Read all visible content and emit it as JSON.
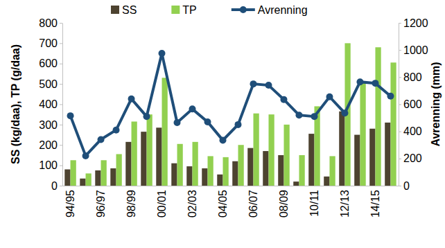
{
  "chart_data": {
    "type": "bar",
    "ylabel": "SS (kg/daa), TP (g/daa)",
    "y2label": "Avrenning (mm)",
    "categories": [
      "94/95",
      null,
      "96/97",
      null,
      "98/99",
      null,
      "00/01",
      null,
      "02/03",
      null,
      "04/05",
      null,
      "06/07",
      null,
      "08/09",
      null,
      "10/11",
      null,
      "12/13",
      null,
      "14/15",
      null
    ],
    "series": [
      {
        "name": "SS",
        "type": "bar",
        "color": "#4d4330",
        "values": [
          80,
          35,
          75,
          85,
          215,
          265,
          285,
          110,
          95,
          85,
          55,
          120,
          185,
          170,
          150,
          20,
          255,
          45,
          365,
          250,
          280,
          310
        ]
      },
      {
        "name": "TP",
        "type": "bar",
        "color": "#92d050",
        "values": [
          125,
          60,
          125,
          155,
          315,
          350,
          530,
          205,
          215,
          145,
          140,
          200,
          355,
          350,
          300,
          150,
          390,
          145,
          700,
          510,
          680,
          605
        ]
      },
      {
        "name": "Avrenning",
        "type": "line",
        "axis": "y2",
        "color": "#1f4e79",
        "marker": "circle",
        "values": [
          515,
          220,
          340,
          410,
          640,
          510,
          975,
          465,
          565,
          470,
          335,
          450,
          750,
          740,
          635,
          520,
          510,
          655,
          535,
          765,
          755,
          660
        ]
      }
    ],
    "ylim": [
      0,
      800
    ],
    "yticks": [
      0,
      100,
      200,
      300,
      400,
      500,
      600,
      700,
      800
    ],
    "y2lim": [
      0,
      1200
    ],
    "y2ticks": [
      0,
      200,
      400,
      600,
      800,
      1000,
      1200
    ],
    "legend": "top",
    "grid": false
  }
}
